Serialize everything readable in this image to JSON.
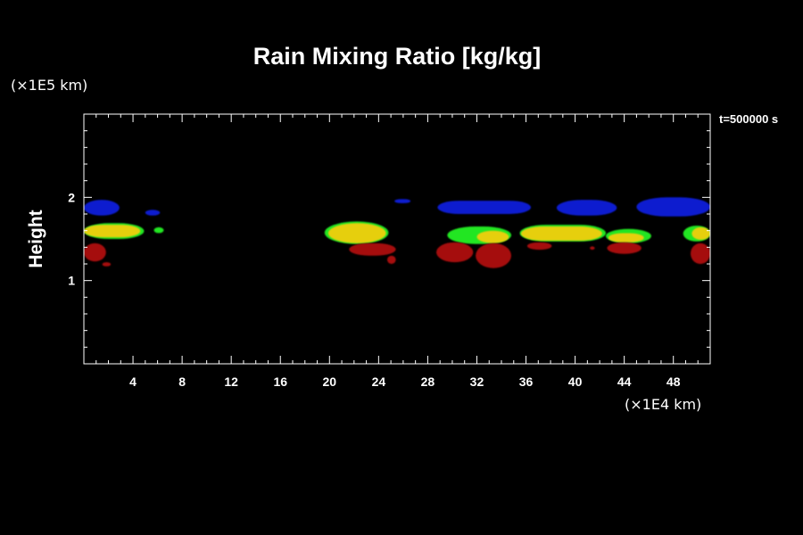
{
  "chart_data": {
    "type": "heatmap",
    "title": "Rain Mixing Ratio [kg/kg]",
    "xlabel": "",
    "ylabel": "Height",
    "x_scale_label": "(×1E4 km)",
    "y_scale_label": "(×1E5 km)",
    "time_label": "t=500000 s",
    "xlim": [
      0,
      51
    ],
    "ylim": [
      0,
      3
    ],
    "x_ticks": [
      4,
      8,
      12,
      16,
      20,
      24,
      28,
      32,
      36,
      40,
      44,
      48
    ],
    "y_ticks": [
      1,
      2
    ],
    "colors": {
      "blue": "#0a1ccf",
      "green": "#22e622",
      "yellow": "#e6cf0f",
      "red": "#a50b0b",
      "axis": "#ffffff",
      "background": "#000000"
    },
    "regions": [
      {
        "color": "blue",
        "x0": 0,
        "x1": 2.9,
        "y_lo": 1.78,
        "y_hi": 1.97
      },
      {
        "color": "blue",
        "x0": 5,
        "x1": 6.2,
        "y_lo": 1.78,
        "y_hi": 1.85
      },
      {
        "color": "blue",
        "x0": 25.3,
        "x1": 26.6,
        "y_lo": 1.93,
        "y_hi": 1.98
      },
      {
        "color": "blue",
        "x0": 28.8,
        "x1": 36.4,
        "y_lo": 1.8,
        "y_hi": 1.96
      },
      {
        "color": "blue",
        "x0": 38.5,
        "x1": 43.4,
        "y_lo": 1.78,
        "y_hi": 1.97
      },
      {
        "color": "blue",
        "x0": 45,
        "x1": 51,
        "y_lo": 1.77,
        "y_hi": 2.0
      },
      {
        "color": "green",
        "x0": 0,
        "x1": 4.9,
        "y_lo": 1.5,
        "y_hi": 1.69
      },
      {
        "color": "green",
        "x0": 5.7,
        "x1": 6.5,
        "y_lo": 1.57,
        "y_hi": 1.64
      },
      {
        "color": "green",
        "x0": 19.6,
        "x1": 24.8,
        "y_lo": 1.44,
        "y_hi": 1.71
      },
      {
        "color": "green",
        "x0": 29.6,
        "x1": 34.8,
        "y_lo": 1.44,
        "y_hi": 1.65
      },
      {
        "color": "green",
        "x0": 35.5,
        "x1": 42.5,
        "y_lo": 1.47,
        "y_hi": 1.67
      },
      {
        "color": "green",
        "x0": 42.5,
        "x1": 46.2,
        "y_lo": 1.45,
        "y_hi": 1.62
      },
      {
        "color": "green",
        "x0": 48.8,
        "x1": 51,
        "y_lo": 1.47,
        "y_hi": 1.66
      },
      {
        "color": "yellow",
        "x0": 0,
        "x1": 4.6,
        "y_lo": 1.52,
        "y_hi": 1.67
      },
      {
        "color": "yellow",
        "x0": 19.9,
        "x1": 24.6,
        "y_lo": 1.45,
        "y_hi": 1.69
      },
      {
        "color": "yellow",
        "x0": 32,
        "x1": 34.6,
        "y_lo": 1.45,
        "y_hi": 1.6
      },
      {
        "color": "yellow",
        "x0": 35.6,
        "x1": 42.2,
        "y_lo": 1.48,
        "y_hi": 1.65
      },
      {
        "color": "yellow",
        "x0": 42.7,
        "x1": 45.6,
        "y_lo": 1.46,
        "y_hi": 1.57
      },
      {
        "color": "yellow",
        "x0": 49.5,
        "x1": 51,
        "y_lo": 1.49,
        "y_hi": 1.64
      },
      {
        "color": "red",
        "x0": 0,
        "x1": 1.8,
        "y_lo": 1.23,
        "y_hi": 1.45
      },
      {
        "color": "red",
        "x0": 1.5,
        "x1": 2.2,
        "y_lo": 1.17,
        "y_hi": 1.22
      },
      {
        "color": "red",
        "x0": 21.6,
        "x1": 25.4,
        "y_lo": 1.3,
        "y_hi": 1.45
      },
      {
        "color": "red",
        "x0": 24.7,
        "x1": 25.4,
        "y_lo": 1.2,
        "y_hi": 1.3
      },
      {
        "color": "red",
        "x0": 28.7,
        "x1": 31.7,
        "y_lo": 1.22,
        "y_hi": 1.46
      },
      {
        "color": "red",
        "x0": 31.9,
        "x1": 34.8,
        "y_lo": 1.15,
        "y_hi": 1.45
      },
      {
        "color": "red",
        "x0": 36.1,
        "x1": 38.1,
        "y_lo": 1.37,
        "y_hi": 1.46
      },
      {
        "color": "red",
        "x0": 41.2,
        "x1": 41.6,
        "y_lo": 1.37,
        "y_hi": 1.41
      },
      {
        "color": "red",
        "x0": 42.6,
        "x1": 45.4,
        "y_lo": 1.32,
        "y_hi": 1.46
      },
      {
        "color": "red",
        "x0": 49.4,
        "x1": 51,
        "y_lo": 1.2,
        "y_hi": 1.45
      }
    ]
  }
}
